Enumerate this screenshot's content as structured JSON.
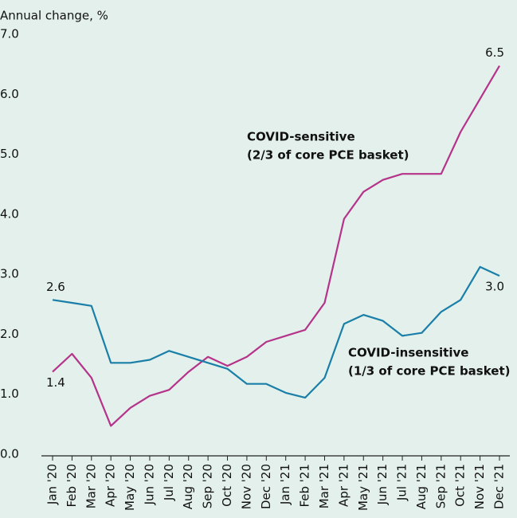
{
  "chart_data": {
    "type": "line",
    "y_label": "Annual change, %",
    "categories": [
      "Jan '20",
      "Feb '20",
      "Mar '20",
      "Apr '20",
      "May '20",
      "Jun '20",
      "Jul '20",
      "Aug '20",
      "Sep '20",
      "Oct '20",
      "Nov '20",
      "Dec '20",
      "Jan '21",
      "Feb '21",
      "Mar '21",
      "Apr '21",
      "May '21",
      "Jun '21",
      "Jul '21",
      "Aug '21",
      "Sep '21",
      "Oct '21",
      "Nov '21",
      "Dec '21"
    ],
    "series": [
      {
        "name": "COVID-sensitive",
        "annotation": "(2/3 of core PCE basket)",
        "color": "#b5338a",
        "values": [
          1.4,
          1.7,
          1.3,
          0.5,
          0.8,
          1.0,
          1.1,
          1.4,
          1.65,
          1.5,
          1.65,
          1.9,
          2.0,
          2.1,
          2.55,
          3.95,
          4.4,
          4.6,
          4.7,
          4.7,
          4.7,
          5.4,
          5.95,
          6.5
        ],
        "value_labels": [
          "1.4",
          null,
          null,
          null,
          null,
          null,
          null,
          null,
          null,
          null,
          null,
          null,
          null,
          null,
          null,
          null,
          null,
          null,
          null,
          null,
          null,
          null,
          null,
          "6.5"
        ]
      },
      {
        "name": "COVID-insensitive",
        "annotation": "(1/3 of core PCE basket)",
        "color": "#1a7fa8",
        "values": [
          2.6,
          2.55,
          2.5,
          1.55,
          1.55,
          1.6,
          1.75,
          1.65,
          1.55,
          1.45,
          1.2,
          1.2,
          1.05,
          0.97,
          1.3,
          2.2,
          2.35,
          2.25,
          2.0,
          2.05,
          2.4,
          2.6,
          3.15,
          3.0
        ],
        "value_labels": [
          "2.6",
          null,
          null,
          null,
          null,
          null,
          null,
          null,
          null,
          null,
          null,
          null,
          null,
          null,
          null,
          null,
          null,
          null,
          null,
          null,
          null,
          null,
          null,
          "3.0"
        ]
      }
    ],
    "ylim": [
      0,
      7
    ],
    "yticks": [
      {
        "value": 0,
        "label": "0.0"
      },
      {
        "value": 1,
        "label": "1.0"
      },
      {
        "value": 2,
        "label": "2.0"
      },
      {
        "value": 3,
        "label": "3.0"
      },
      {
        "value": 4,
        "label": "4.0"
      },
      {
        "value": 5,
        "label": "5.0"
      },
      {
        "value": 6,
        "label": "6.0"
      },
      {
        "value": 7,
        "label": "7.0"
      }
    ],
    "grid": false
  }
}
